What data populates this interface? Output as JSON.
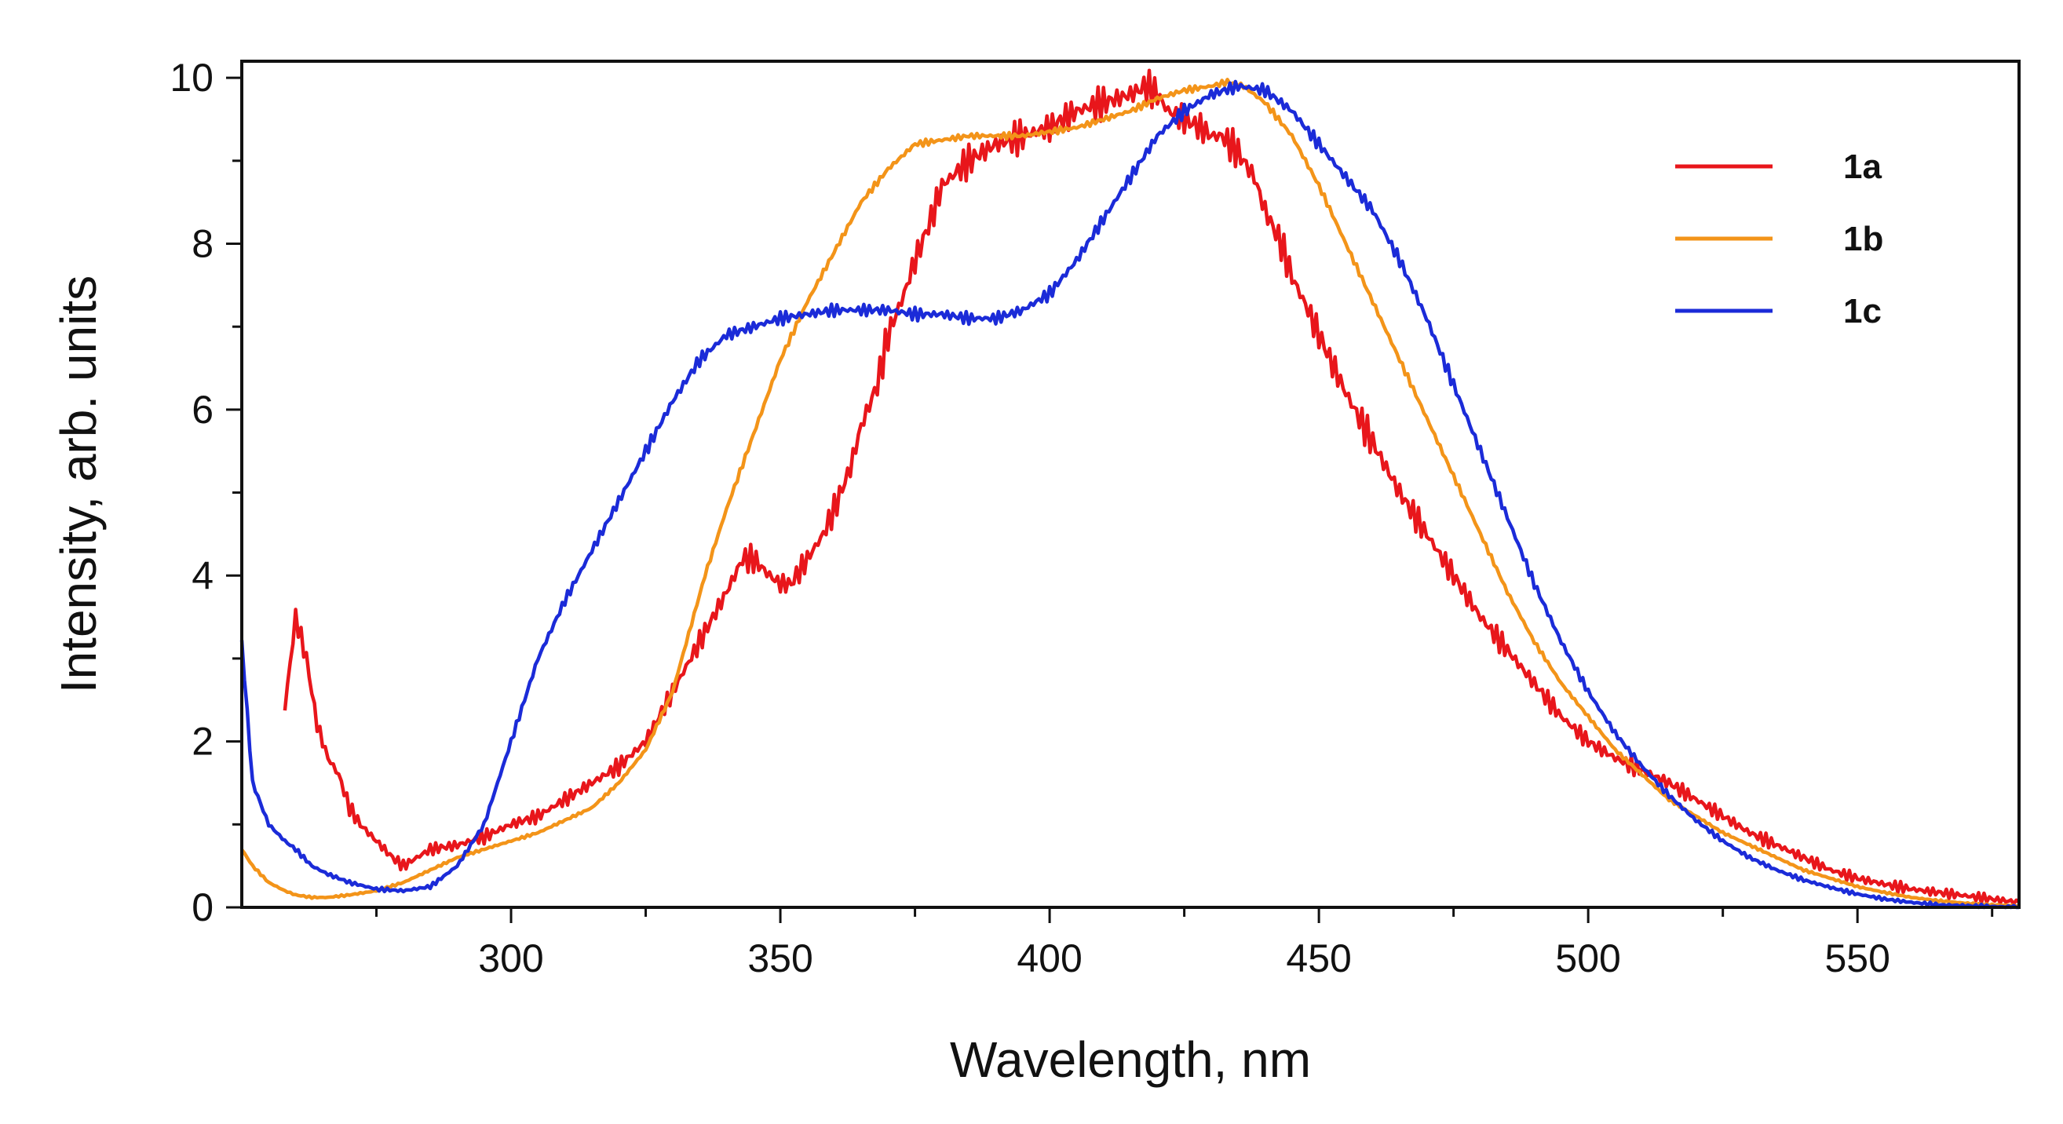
{
  "chart_data": {
    "type": "line",
    "title": "",
    "xlabel": "Wavelength, nm",
    "ylabel": "Intensity, arb. units",
    "xlim": [
      250,
      580
    ],
    "ylim": [
      0,
      10.2
    ],
    "xticks": [
      300,
      350,
      400,
      450,
      500,
      550
    ],
    "yticks": [
      0,
      2,
      4,
      6,
      8,
      10
    ],
    "legend_position": "top-right",
    "grid": false,
    "series": [
      {
        "name": "1a",
        "color": "#e8161b",
        "x": [
          258,
          260,
          262,
          264,
          266,
          268,
          270,
          272,
          275,
          278,
          280,
          285,
          290,
          295,
          300,
          305,
          310,
          315,
          320,
          325,
          330,
          335,
          340,
          343,
          345,
          348,
          350,
          352,
          355,
          358,
          360,
          363,
          365,
          368,
          370,
          373,
          375,
          378,
          380,
          385,
          390,
          395,
          400,
          405,
          410,
          415,
          418,
          420,
          422,
          425,
          428,
          430,
          432,
          435,
          438,
          440,
          443,
          445,
          448,
          450,
          455,
          460,
          465,
          470,
          475,
          480,
          485,
          490,
          495,
          500,
          505,
          510,
          515,
          520,
          525,
          530,
          535,
          540,
          545,
          550,
          555,
          560,
          565,
          570,
          575,
          580
        ],
        "y": [
          2.4,
          3.5,
          3.0,
          2.2,
          1.8,
          1.6,
          1.2,
          1.0,
          0.8,
          0.6,
          0.5,
          0.7,
          0.75,
          0.85,
          1.0,
          1.1,
          1.3,
          1.5,
          1.7,
          2.0,
          2.6,
          3.2,
          3.8,
          4.2,
          4.2,
          4.0,
          3.9,
          3.9,
          4.2,
          4.5,
          4.8,
          5.3,
          5.8,
          6.3,
          6.9,
          7.4,
          7.8,
          8.3,
          8.7,
          9.0,
          9.2,
          9.3,
          9.4,
          9.6,
          9.7,
          9.8,
          9.9,
          9.8,
          9.6,
          9.5,
          9.4,
          9.3,
          9.3,
          9.1,
          8.8,
          8.4,
          8.0,
          7.6,
          7.2,
          6.9,
          6.2,
          5.6,
          5.0,
          4.5,
          4.0,
          3.5,
          3.1,
          2.7,
          2.3,
          2.0,
          1.8,
          1.65,
          1.5,
          1.3,
          1.1,
          0.9,
          0.75,
          0.6,
          0.45,
          0.35,
          0.28,
          0.22,
          0.18,
          0.14,
          0.1,
          0.06
        ]
      },
      {
        "name": "1b",
        "color": "#f39419",
        "x": [
          250,
          252,
          255,
          258,
          260,
          263,
          266,
          270,
          275,
          280,
          285,
          290,
          295,
          300,
          305,
          310,
          315,
          320,
          325,
          330,
          333,
          336,
          340,
          345,
          350,
          355,
          360,
          365,
          370,
          375,
          380,
          385,
          390,
          395,
          400,
          405,
          410,
          415,
          420,
          425,
          430,
          433,
          436,
          440,
          445,
          450,
          455,
          460,
          465,
          470,
          475,
          480,
          485,
          490,
          495,
          500,
          505,
          510,
          515,
          520,
          525,
          530,
          535,
          540,
          545,
          550,
          555,
          560,
          565,
          570,
          575,
          580
        ],
        "y": [
          0.7,
          0.5,
          0.3,
          0.2,
          0.15,
          0.12,
          0.12,
          0.15,
          0.2,
          0.3,
          0.45,
          0.6,
          0.7,
          0.8,
          0.9,
          1.05,
          1.2,
          1.5,
          1.9,
          2.6,
          3.3,
          4.0,
          4.8,
          5.7,
          6.6,
          7.3,
          7.9,
          8.5,
          8.9,
          9.2,
          9.25,
          9.3,
          9.3,
          9.3,
          9.35,
          9.4,
          9.5,
          9.6,
          9.75,
          9.85,
          9.9,
          9.95,
          9.9,
          9.7,
          9.3,
          8.7,
          8.0,
          7.3,
          6.6,
          5.9,
          5.2,
          4.5,
          3.8,
          3.2,
          2.7,
          2.3,
          1.9,
          1.6,
          1.3,
          1.1,
          0.9,
          0.75,
          0.6,
          0.45,
          0.35,
          0.25,
          0.18,
          0.12,
          0.08,
          0.05,
          0.03,
          0.02
        ]
      },
      {
        "name": "1c",
        "color": "#1b2bd8",
        "x": [
          250,
          252,
          255,
          258,
          260,
          263,
          266,
          270,
          275,
          280,
          285,
          290,
          295,
          300,
          305,
          310,
          315,
          320,
          325,
          330,
          335,
          340,
          345,
          350,
          355,
          360,
          365,
          370,
          375,
          380,
          385,
          390,
          395,
          400,
          405,
          410,
          415,
          420,
          425,
          430,
          435,
          440,
          445,
          450,
          455,
          460,
          465,
          470,
          475,
          480,
          485,
          490,
          495,
          500,
          505,
          510,
          515,
          520,
          525,
          530,
          535,
          540,
          545,
          550,
          555,
          560,
          565,
          570,
          575,
          580
        ],
        "y": [
          3.2,
          1.5,
          1.0,
          0.8,
          0.7,
          0.5,
          0.4,
          0.3,
          0.22,
          0.2,
          0.25,
          0.5,
          1.0,
          2.0,
          3.0,
          3.7,
          4.3,
          4.9,
          5.5,
          6.1,
          6.6,
          6.9,
          7.0,
          7.1,
          7.15,
          7.2,
          7.2,
          7.2,
          7.15,
          7.15,
          7.1,
          7.1,
          7.2,
          7.4,
          7.8,
          8.3,
          8.8,
          9.3,
          9.6,
          9.8,
          9.9,
          9.85,
          9.6,
          9.2,
          8.8,
          8.4,
          7.8,
          7.1,
          6.3,
          5.5,
          4.7,
          3.9,
          3.2,
          2.6,
          2.1,
          1.7,
          1.35,
          1.05,
          0.8,
          0.6,
          0.45,
          0.33,
          0.24,
          0.16,
          0.1,
          0.06,
          0.03,
          0.02,
          0.01,
          0.0
        ]
      }
    ]
  }
}
